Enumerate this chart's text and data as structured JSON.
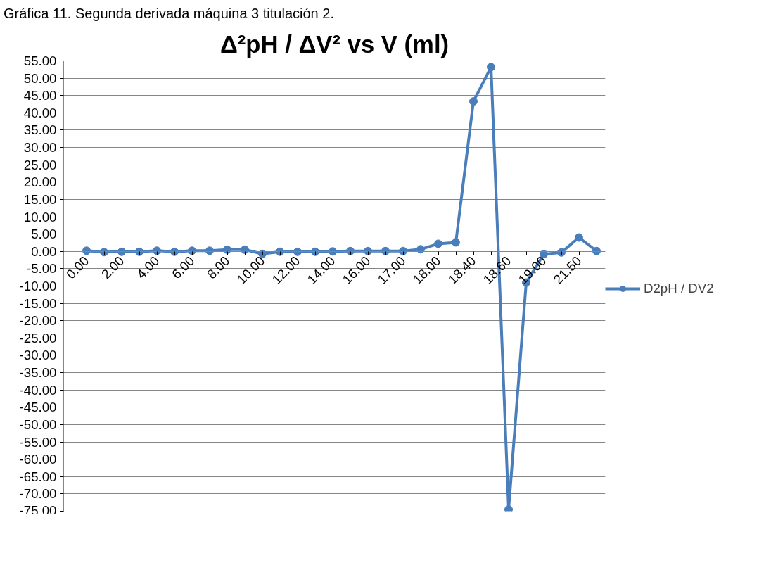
{
  "chart_data": {
    "type": "line",
    "title": "Δ²pH / ΔV² vs V (ml)",
    "annotations": [
      "Gráfica 11. Segunda derivada máquina 3 titulación 2."
    ],
    "categories": [
      "0.00",
      null,
      "2.00",
      null,
      "4.00",
      null,
      "6.00",
      null,
      "8.00",
      null,
      "10.00",
      null,
      "12.00",
      null,
      "14.00",
      null,
      "16.00",
      null,
      "17.00",
      null,
      "18.00",
      null,
      "18.40",
      null,
      "18.60",
      null,
      "19.00",
      null,
      "21.50",
      null
    ],
    "series": [
      {
        "name": "D2pH / DV2",
        "color": "#4a7ebb",
        "values": [
          0.2,
          -0.2,
          -0.1,
          -0.1,
          0.2,
          -0.1,
          0.2,
          0.2,
          0.5,
          0.5,
          -0.7,
          -0.1,
          -0.1,
          -0.1,
          0.0,
          0.1,
          0.1,
          0.1,
          0.1,
          0.6,
          2.2,
          2.6,
          43.3,
          53.2,
          -74.5,
          -9.0,
          -0.8,
          -0.3,
          4.0,
          0.1
        ]
      }
    ],
    "ylim": [
      -75,
      55
    ],
    "yticks": [
      {
        "value": -75,
        "label": "-75.00"
      },
      {
        "value": -70,
        "label": "-70.00"
      },
      {
        "value": -65,
        "label": "-65.00"
      },
      {
        "value": -60,
        "label": "-60.00"
      },
      {
        "value": -55,
        "label": "-55.00"
      },
      {
        "value": -50,
        "label": "-50.00"
      },
      {
        "value": -45,
        "label": "-45.00"
      },
      {
        "value": -40,
        "label": "-40.00"
      },
      {
        "value": -35,
        "label": "-35.00"
      },
      {
        "value": -30,
        "label": "-30.00"
      },
      {
        "value": -25,
        "label": "-25.00"
      },
      {
        "value": -20,
        "label": "-20.00"
      },
      {
        "value": -15,
        "label": "-15.00"
      },
      {
        "value": -10,
        "label": "-10.00"
      },
      {
        "value": -5,
        "label": "-5.00"
      },
      {
        "value": 0,
        "label": "0.00"
      },
      {
        "value": 5,
        "label": "5.00"
      },
      {
        "value": 10,
        "label": "10.00"
      },
      {
        "value": 15,
        "label": "15.00"
      },
      {
        "value": 20,
        "label": "20.00"
      },
      {
        "value": 25,
        "label": "25.00"
      },
      {
        "value": 30,
        "label": "30.00"
      },
      {
        "value": 35,
        "label": "35.00"
      },
      {
        "value": 40,
        "label": "40.00"
      },
      {
        "value": 45,
        "label": "45.00"
      },
      {
        "value": 50,
        "label": "50.00"
      },
      {
        "value": 55,
        "label": "55.00"
      }
    ],
    "grid": "y",
    "legend": "right",
    "marker": "circle",
    "line_style": "solid"
  }
}
